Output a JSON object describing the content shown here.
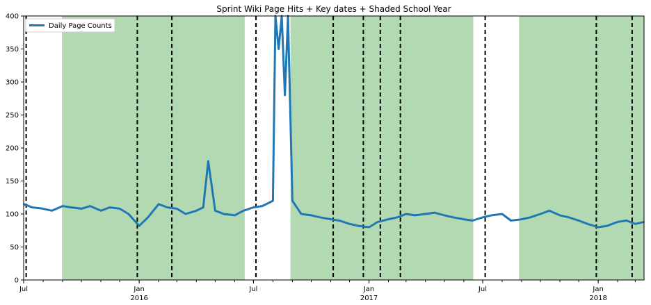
{
  "chart_data": {
    "type": "line",
    "title": "Sprint Wiki Page Hits + Key dates + Shaded School Year",
    "xlabel": "",
    "ylabel": "",
    "xlim": [
      "2015-07-01",
      "2018-03-15"
    ],
    "ylim": [
      0,
      400
    ],
    "y_ticks": [
      0,
      50,
      100,
      150,
      200,
      250,
      300,
      350,
      400
    ],
    "x_ticks": [
      {
        "date": "2015-07-01",
        "label": "Jul",
        "sublabel": ""
      },
      {
        "date": "2016-01-01",
        "label": "Jan",
        "sublabel": "2016"
      },
      {
        "date": "2016-07-01",
        "label": "Jul",
        "sublabel": ""
      },
      {
        "date": "2017-01-01",
        "label": "Jan",
        "sublabel": "2017"
      },
      {
        "date": "2017-07-01",
        "label": "Jul",
        "sublabel": ""
      },
      {
        "date": "2018-01-01",
        "label": "Jan",
        "sublabel": "2018"
      }
    ],
    "grid": false,
    "legend": {
      "position": "top-left",
      "entries": [
        "Daily Page Counts"
      ]
    },
    "colors": {
      "line": "#1f77b4",
      "shade": "#b3d9b3",
      "key_date": "#000000"
    },
    "shaded_school_years": [
      {
        "start": "2015-08-31",
        "end": "2016-06-17"
      },
      {
        "start": "2016-08-29",
        "end": "2017-06-16"
      },
      {
        "start": "2017-08-28",
        "end": "2018-06-15"
      }
    ],
    "key_dates": [
      "2015-07-05",
      "2015-12-29",
      "2016-02-22",
      "2016-07-05",
      "2016-11-05",
      "2016-12-23",
      "2017-01-19",
      "2017-02-20",
      "2017-07-05",
      "2017-12-29",
      "2018-02-24"
    ],
    "series": [
      {
        "name": "Daily Page Counts",
        "x": [
          "2015-07-01",
          "2015-07-15",
          "2015-08-01",
          "2015-08-15",
          "2015-09-01",
          "2015-09-15",
          "2015-10-01",
          "2015-10-15",
          "2015-11-01",
          "2015-11-15",
          "2015-12-01",
          "2015-12-15",
          "2016-01-01",
          "2016-01-15",
          "2016-02-01",
          "2016-02-15",
          "2016-03-01",
          "2016-03-15",
          "2016-04-01",
          "2016-04-12",
          "2016-04-20",
          "2016-05-01",
          "2016-05-15",
          "2016-06-01",
          "2016-06-15",
          "2016-07-01",
          "2016-07-15",
          "2016-08-01",
          "2016-08-05",
          "2016-08-10",
          "2016-08-15",
          "2016-08-20",
          "2016-08-25",
          "2016-09-01",
          "2016-09-15",
          "2016-10-01",
          "2016-10-15",
          "2016-11-01",
          "2016-11-15",
          "2016-12-01",
          "2016-12-15",
          "2017-01-01",
          "2017-01-15",
          "2017-02-01",
          "2017-02-15",
          "2017-03-01",
          "2017-03-15",
          "2017-04-01",
          "2017-04-15",
          "2017-05-01",
          "2017-05-15",
          "2017-06-01",
          "2017-06-15",
          "2017-07-01",
          "2017-07-15",
          "2017-08-01",
          "2017-08-15",
          "2017-09-01",
          "2017-09-15",
          "2017-10-01",
          "2017-10-15",
          "2017-11-01",
          "2017-11-15",
          "2017-12-01",
          "2017-12-15",
          "2018-01-01",
          "2018-01-15",
          "2018-02-01",
          "2018-02-15",
          "2018-03-01",
          "2018-03-15"
        ],
        "y": [
          115,
          110,
          108,
          105,
          112,
          110,
          108,
          112,
          105,
          110,
          108,
          100,
          82,
          95,
          115,
          110,
          108,
          100,
          105,
          110,
          180,
          105,
          100,
          98,
          105,
          110,
          112,
          120,
          400,
          350,
          400,
          280,
          400,
          120,
          100,
          98,
          95,
          92,
          90,
          85,
          82,
          80,
          88,
          92,
          95,
          100,
          98,
          100,
          102,
          98,
          95,
          92,
          90,
          95,
          98,
          100,
          90,
          92,
          95,
          100,
          105,
          98,
          95,
          90,
          85,
          80,
          82,
          88,
          90,
          85,
          88
        ]
      }
    ]
  }
}
